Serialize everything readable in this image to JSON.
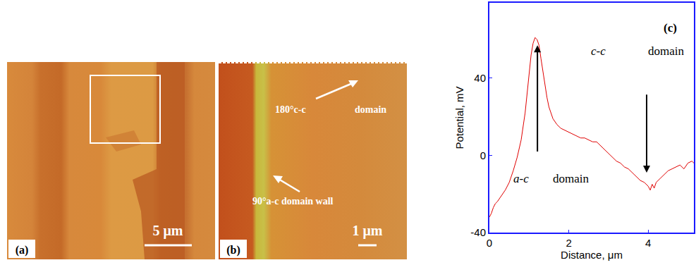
{
  "panels": [
    {
      "label": "(a)",
      "scale_bar": "5 μm"
    },
    {
      "label": "(b)",
      "scale_bar": "1 μm",
      "annotations": [
        "180°c-c",
        "domain",
        "90°a-c domain wall"
      ]
    }
  ],
  "chart_data": {
    "type": "line",
    "x_label": "Distance, μm",
    "y_label": "Potential, mV",
    "x": [
      0,
      0.05,
      0.1,
      0.15,
      0.2,
      0.3,
      0.4,
      0.5,
      0.6,
      0.7,
      0.8,
      0.9,
      0.95,
      1.0,
      1.05,
      1.1,
      1.15,
      1.2,
      1.25,
      1.3,
      1.35,
      1.4,
      1.45,
      1.5,
      1.6,
      1.7,
      1.8,
      1.9,
      2.0,
      2.1,
      2.2,
      2.3,
      2.4,
      2.5,
      2.6,
      2.7,
      2.8,
      2.9,
      3.0,
      3.1,
      3.2,
      3.3,
      3.4,
      3.5,
      3.6,
      3.7,
      3.8,
      3.9,
      4.0,
      4.05,
      4.1,
      4.15,
      4.2,
      4.3,
      4.4,
      4.5,
      4.6,
      4.7,
      4.8,
      4.9,
      5.0,
      5.1,
      5.15
    ],
    "values": [
      -32,
      -30,
      -27,
      -25,
      -24,
      -21,
      -18,
      -14,
      -8,
      -1,
      8,
      22,
      32,
      42,
      52,
      58,
      61,
      60,
      57,
      50,
      43,
      36,
      30,
      25,
      19,
      16,
      14,
      13,
      12,
      11,
      10,
      9,
      9,
      8,
      7,
      7,
      5,
      3,
      1,
      -1,
      -3,
      -4,
      -6,
      -7,
      -9,
      -11,
      -13,
      -14,
      -16,
      -18,
      -15,
      -17,
      -14,
      -12,
      -10,
      -8,
      -7,
      -6,
      -5,
      -7,
      -4,
      -3,
      -4
    ],
    "color": "#e00000",
    "xlim": [
      0,
      5.15
    ],
    "ylim": [
      -40,
      79
    ],
    "xticks": [
      0,
      2,
      4
    ],
    "yticks": [
      -40,
      0,
      40
    ],
    "grid": false,
    "annotations": [
      {
        "text": "(c)",
        "x": 4.55,
        "y": 66
      },
      {
        "text": "a-c",
        "x": 0.8,
        "y": -12
      },
      {
        "text": "domain",
        "x": 2.05,
        "y": -12
      },
      {
        "text": "c-c",
        "x": 2.75,
        "y": 54
      },
      {
        "text": "domain",
        "x": 4.45,
        "y": 54
      }
    ]
  }
}
